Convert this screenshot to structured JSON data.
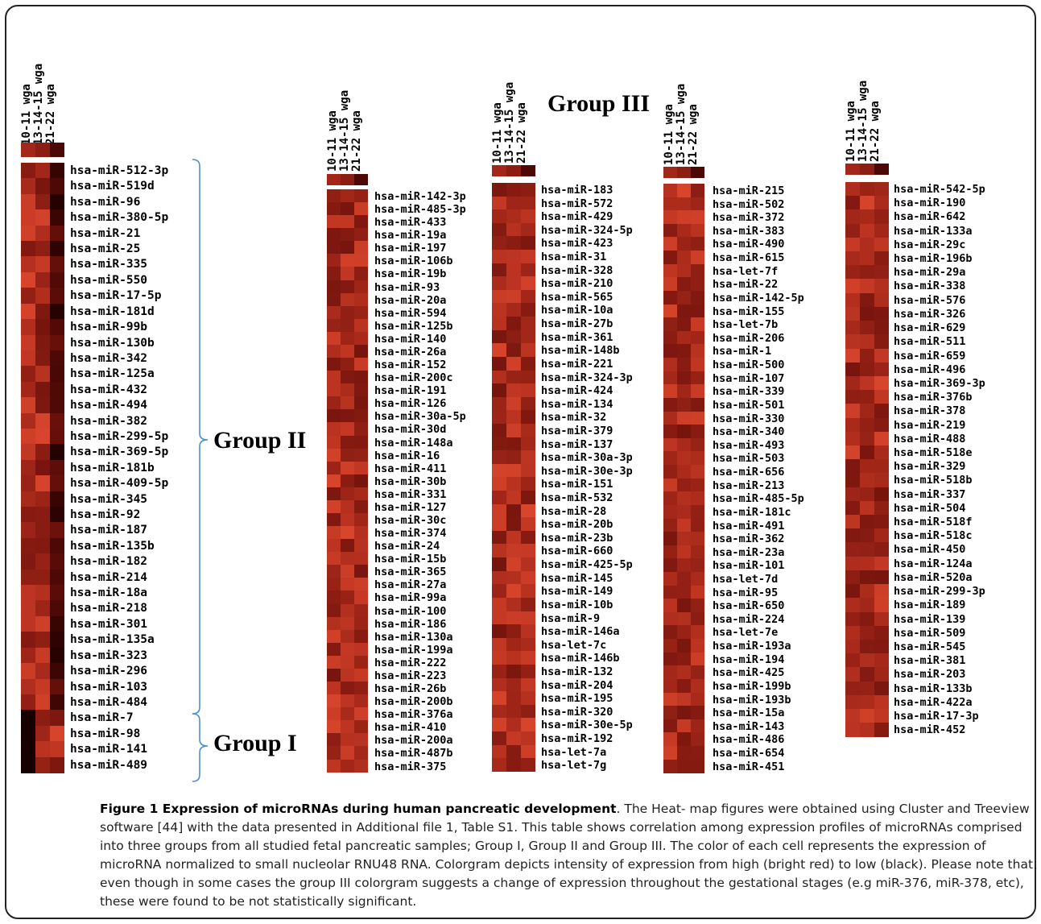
{
  "colors": {
    "bright": "#d8452c",
    "dark": "#000000",
    "frame": "#222222"
  },
  "headers": [
    "10-11 wga",
    "13-14-15 wga",
    "21-22 wga"
  ],
  "groups": {
    "group_ii": "Group II",
    "group_i": "Group I",
    "group_iii": "Group III"
  },
  "panels": [
    {
      "labels": [
        "hsa-miR-512-3p",
        "hsa-miR-519d",
        "hsa-miR-96",
        "hsa-miR-380-5p",
        "hsa-miR-21",
        "hsa-miR-25",
        "hsa-miR-335",
        "hsa-miR-550",
        "hsa-miR-17-5p",
        "hsa-miR-181d",
        "hsa-miR-99b",
        "hsa-miR-130b",
        "hsa-miR-342",
        "hsa-miR-125a",
        "hsa-miR-432",
        "hsa-miR-494",
        "hsa-miR-382",
        "hsa-miR-299-5p",
        "hsa-miR-369-5p",
        "hsa-miR-181b",
        "hsa-miR-409-5p",
        "hsa-miR-345",
        "hsa-miR-92",
        "hsa-miR-187",
        "hsa-miR-135b",
        "hsa-miR-182",
        "hsa-miR-214",
        "hsa-miR-18a",
        "hsa-miR-218",
        "hsa-miR-301",
        "hsa-miR-135a",
        "hsa-miR-323",
        "hsa-miR-296",
        "hsa-miR-103",
        "hsa-miR-484",
        "hsa-miR-7",
        "hsa-miR-98",
        "hsa-miR-141",
        "hsa-miR-489"
      ]
    },
    {
      "labels": [
        "hsa-miR-142-3p",
        "hsa-miR-485-3p",
        "hsa-miR-433",
        "hsa-miR-19a",
        "hsa-miR-197",
        "hsa-miR-106b",
        "hsa-miR-19b",
        "hsa-miR-93",
        "hsa-miR-20a",
        "hsa-miR-594",
        "hsa-miR-125b",
        "hsa-miR-140",
        "hsa-miR-26a",
        "hsa-miR-152",
        "hsa-miR-200c",
        "hsa-miR-191",
        "hsa-miR-126",
        "hsa-miR-30a-5p",
        "hsa-miR-30d",
        "hsa-miR-148a",
        "hsa-miR-16",
        "hsa-miR-411",
        "hsa-miR-30b",
        "hsa-miR-331",
        "hsa-miR-127",
        "hsa-miR-30c",
        "hsa-miR-374",
        "hsa-miR-24",
        "hsa-miR-15b",
        "hsa-miR-365",
        "hsa-miR-27a",
        "hsa-miR-99a",
        "hsa-miR-100",
        "hsa-miR-186",
        "hsa-miR-130a",
        "hsa-miR-199a",
        "hsa-miR-222",
        "hsa-miR-223",
        "hsa-miR-26b",
        "hsa-miR-200b",
        "hsa-miR-376a",
        "hsa-miR-410",
        "hsa-miR-200a",
        "hsa-miR-487b",
        "hsa-miR-375"
      ]
    },
    {
      "labels": [
        "hsa-miR-183",
        "hsa-miR-572",
        "hsa-miR-429",
        "hsa-miR-324-5p",
        "hsa-miR-423",
        "hsa-miR-31",
        "hsa-miR-328",
        "hsa-miR-210",
        "hsa-miR-565",
        "hsa-miR-10a",
        "hsa-miR-27b",
        "hsa-miR-361",
        "hsa-miR-148b",
        "hsa-miR-221",
        "hsa-miR-324-3p",
        "hsa-miR-424",
        "hsa-miR-134",
        "hsa-miR-32",
        "hsa-miR-379",
        "hsa-miR-137",
        "hsa-miR-30a-3p",
        "hsa-miR-30e-3p",
        "hsa-miR-151",
        "hsa-miR-532",
        "hsa-miR-28",
        "hsa-miR-20b",
        "hsa-miR-23b",
        "hsa-miR-660",
        "hsa-miR-425-5p",
        "hsa-miR-145",
        "hsa-miR-149",
        "hsa-miR-10b",
        "hsa-miR-9",
        "hsa-miR-146a",
        "hsa-let-7c",
        "hsa-miR-146b",
        "hsa-miR-132",
        "hsa-miR-204",
        "hsa-miR-195",
        "hsa-miR-320",
        "hsa-miR-30e-5p",
        "hsa-miR-192",
        "hsa-let-7a",
        "hsa-let-7g"
      ]
    },
    {
      "labels": [
        "hsa-miR-215",
        "hsa-miR-502",
        "hsa-miR-372",
        "hsa-miR-383",
        "hsa-miR-490",
        "hsa-miR-615",
        "hsa-let-7f",
        "hsa-miR-22",
        "hsa-miR-142-5p",
        "hsa-miR-155",
        "hsa-let-7b",
        "hsa-miR-206",
        "hsa-miR-1",
        "hsa-miR-500",
        "hsa-miR-107",
        "hsa-miR-339",
        "hsa-miR-501",
        "hsa-miR-330",
        "hsa-miR-340",
        "hsa-miR-493",
        "hsa-miR-503",
        "hsa-miR-656",
        "hsa-miR-213",
        "hsa-miR-485-5p",
        "hsa-miR-181c",
        "hsa-miR-491",
        "hsa-miR-362",
        "hsa-miR-23a",
        "hsa-miR-101",
        "hsa-let-7d",
        "hsa-miR-95",
        "hsa-miR-650",
        "hsa-miR-224",
        "hsa-let-7e",
        "hsa-miR-193a",
        "hsa-miR-194",
        "hsa-miR-425",
        "hsa-miR-199b",
        "hsa-miR-193b",
        "hsa-miR-15a",
        "hsa-miR-143",
        "hsa-miR-486",
        "hsa-miR-654",
        "hsa-miR-451"
      ]
    },
    {
      "labels": [
        "hsa-miR-542-5p",
        "hsa-miR-190",
        "hsa-miR-642",
        "hsa-miR-133a",
        "hsa-miR-29c",
        "hsa-miR-196b",
        "hsa-miR-29a",
        "hsa-miR-338",
        "hsa-miR-576",
        "hsa-miR-326",
        "hsa-miR-629",
        "hsa-miR-511",
        "hsa-miR-659",
        "hsa-miR-496",
        "hsa-miR-369-3p",
        "hsa-miR-376b",
        "hsa-miR-378",
        "hsa-miR-219",
        "hsa-miR-488",
        "hsa-miR-518e",
        "hsa-miR-329",
        "hsa-miR-518b",
        "hsa-miR-337",
        "hsa-miR-504",
        "hsa-miR-518f",
        "hsa-miR-518c",
        "hsa-miR-450",
        "hsa-miR-124a",
        "hsa-miR-520a",
        "hsa-miR-299-3p",
        "hsa-miR-189",
        "hsa-miR-139",
        "hsa-miR-509",
        "hsa-miR-545",
        "hsa-miR-381",
        "hsa-miR-203",
        "hsa-miR-133b",
        "hsa-miR-422a",
        "hsa-miR-17-3p",
        "hsa-miR-452"
      ]
    }
  ],
  "caption": {
    "title": "Figure 1 Expression of microRNAs during human pancreatic development",
    "body": ". The Heat- map figures were obtained using Cluster and Treeview software [44] with the data presented in Additional file 1, Table S1. This table shows correlation among expression profiles of microRNAs comprised into three groups from all studied fetal pancreatic samples; Group I, Group II and Group III. The color of each cell represents the expression of microRNA normalized to small nucleolar RNU48 RNA. Colorgram depicts intensity of expression from high (bright red) to low (black). Please note that even though in some cases the group III colorgram suggests a change of expression throughout the gestational stages (e.g miR-376, miR-378, etc), these were found to be not statistically significant."
  }
}
